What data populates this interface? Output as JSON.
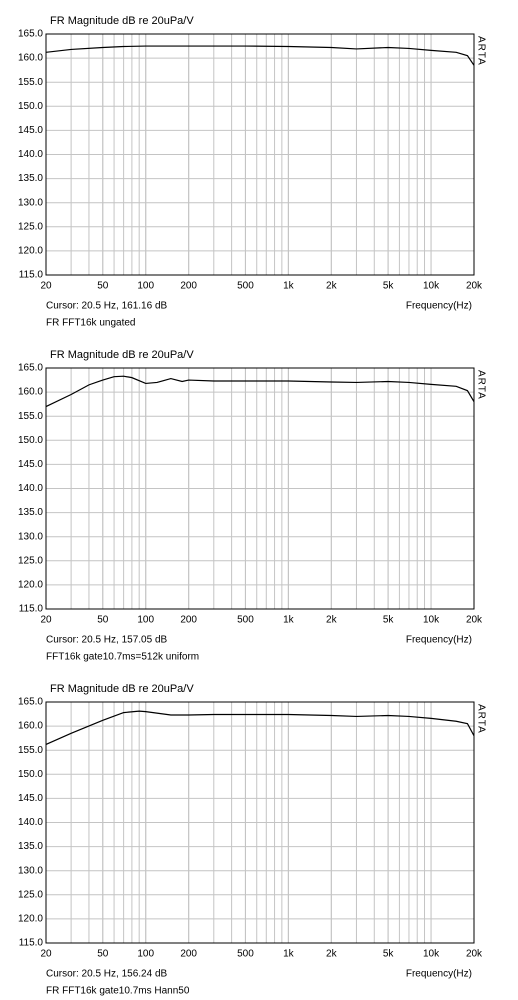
{
  "chart_data": [
    {
      "type": "line",
      "title": "FR Magnitude dB re 20uPa/V",
      "cursor": "Cursor:   20.5 Hz, 161.16 dB",
      "x_label": "Frequency(Hz)",
      "note": "FR FFT16k ungated",
      "brand": "ARTA",
      "log_x": true,
      "grid": true,
      "xlim": [
        20,
        20000
      ],
      "ylim": [
        115,
        165
      ],
      "xticks": [
        20,
        50,
        100,
        200,
        500,
        {
          "value": 1000,
          "label": "1k"
        },
        {
          "value": 2000,
          "label": "2k"
        },
        {
          "value": 5000,
          "label": "5k"
        },
        {
          "value": 10000,
          "label": "10k"
        },
        {
          "value": 20000,
          "label": "20k"
        }
      ],
      "yticks": [
        {
          "value": 115,
          "label": "115.0"
        },
        {
          "value": 120,
          "label": "120.0"
        },
        {
          "value": 125,
          "label": "125.0"
        },
        {
          "value": 130,
          "label": "130.0"
        },
        {
          "value": 135,
          "label": "135.0"
        },
        {
          "value": 140,
          "label": "140.0"
        },
        {
          "value": 145,
          "label": "145.0"
        },
        {
          "value": 150,
          "label": "150.0"
        },
        {
          "value": 155,
          "label": "155.0"
        },
        {
          "value": 160,
          "label": "160.0"
        },
        {
          "value": 165,
          "label": "165.0"
        }
      ],
      "x": [
        20,
        30,
        50,
        70,
        100,
        200,
        500,
        1000,
        2000,
        3000,
        5000,
        7000,
        10000,
        15000,
        18000,
        20000
      ],
      "series": [
        {
          "color": "#000000",
          "values": [
            161.2,
            161.8,
            162.2,
            162.4,
            162.5,
            162.5,
            162.5,
            162.4,
            162.2,
            161.9,
            162.2,
            162.0,
            161.6,
            161.2,
            160.5,
            158.5
          ]
        }
      ]
    },
    {
      "type": "line",
      "title": "FR Magnitude dB re 20uPa/V",
      "cursor": "Cursor:   20.5 Hz, 157.05 dB",
      "x_label": "Frequency(Hz)",
      "note": "FFT16k gate10.7ms=512k uniform",
      "brand": "ARTA",
      "log_x": true,
      "grid": true,
      "xlim": [
        20,
        20000
      ],
      "ylim": [
        115,
        165
      ],
      "xticks": [
        20,
        50,
        100,
        200,
        500,
        {
          "value": 1000,
          "label": "1k"
        },
        {
          "value": 2000,
          "label": "2k"
        },
        {
          "value": 5000,
          "label": "5k"
        },
        {
          "value": 10000,
          "label": "10k"
        },
        {
          "value": 20000,
          "label": "20k"
        }
      ],
      "yticks": [
        {
          "value": 115,
          "label": "115.0"
        },
        {
          "value": 120,
          "label": "120.0"
        },
        {
          "value": 125,
          "label": "125.0"
        },
        {
          "value": 130,
          "label": "130.0"
        },
        {
          "value": 135,
          "label": "135.0"
        },
        {
          "value": 140,
          "label": "140.0"
        },
        {
          "value": 145,
          "label": "145.0"
        },
        {
          "value": 150,
          "label": "150.0"
        },
        {
          "value": 155,
          "label": "155.0"
        },
        {
          "value": 160,
          "label": "160.0"
        },
        {
          "value": 165,
          "label": "165.0"
        }
      ],
      "x": [
        20,
        30,
        40,
        50,
        60,
        70,
        80,
        100,
        120,
        150,
        180,
        200,
        300,
        500,
        1000,
        2000,
        3000,
        5000,
        7000,
        10000,
        15000,
        18000,
        20000
      ],
      "series": [
        {
          "color": "#000000",
          "values": [
            157.0,
            159.5,
            161.5,
            162.5,
            163.2,
            163.3,
            163.0,
            161.8,
            162.0,
            162.8,
            162.2,
            162.5,
            162.3,
            162.3,
            162.3,
            162.1,
            162.0,
            162.2,
            162.0,
            161.6,
            161.2,
            160.3,
            158.0
          ]
        }
      ]
    },
    {
      "type": "line",
      "title": "FR Magnitude dB re 20uPa/V",
      "cursor": "Cursor:   20.5 Hz, 156.24 dB",
      "x_label": "Frequency(Hz)",
      "note": "FR FFT16k gate10.7ms Hann50",
      "brand": "ARTA",
      "log_x": true,
      "grid": true,
      "xlim": [
        20,
        20000
      ],
      "ylim": [
        115,
        165
      ],
      "xticks": [
        20,
        50,
        100,
        200,
        500,
        {
          "value": 1000,
          "label": "1k"
        },
        {
          "value": 2000,
          "label": "2k"
        },
        {
          "value": 5000,
          "label": "5k"
        },
        {
          "value": 10000,
          "label": "10k"
        },
        {
          "value": 20000,
          "label": "20k"
        }
      ],
      "yticks": [
        {
          "value": 115,
          "label": "115.0"
        },
        {
          "value": 120,
          "label": "120.0"
        },
        {
          "value": 125,
          "label": "125.0"
        },
        {
          "value": 130,
          "label": "130.0"
        },
        {
          "value": 135,
          "label": "135.0"
        },
        {
          "value": 140,
          "label": "140.0"
        },
        {
          "value": 145,
          "label": "145.0"
        },
        {
          "value": 150,
          "label": "150.0"
        },
        {
          "value": 155,
          "label": "155.0"
        },
        {
          "value": 160,
          "label": "160.0"
        },
        {
          "value": 165,
          "label": "165.0"
        }
      ],
      "x": [
        20,
        30,
        50,
        70,
        90,
        100,
        150,
        200,
        300,
        1000,
        2000,
        3000,
        5000,
        7000,
        10000,
        15000,
        18000,
        20000
      ],
      "series": [
        {
          "color": "#000000",
          "values": [
            156.2,
            158.5,
            161.2,
            162.8,
            163.1,
            163.0,
            162.3,
            162.3,
            162.4,
            162.4,
            162.2,
            162.0,
            162.2,
            162.0,
            161.6,
            161.0,
            160.5,
            158.0
          ]
        }
      ]
    }
  ]
}
